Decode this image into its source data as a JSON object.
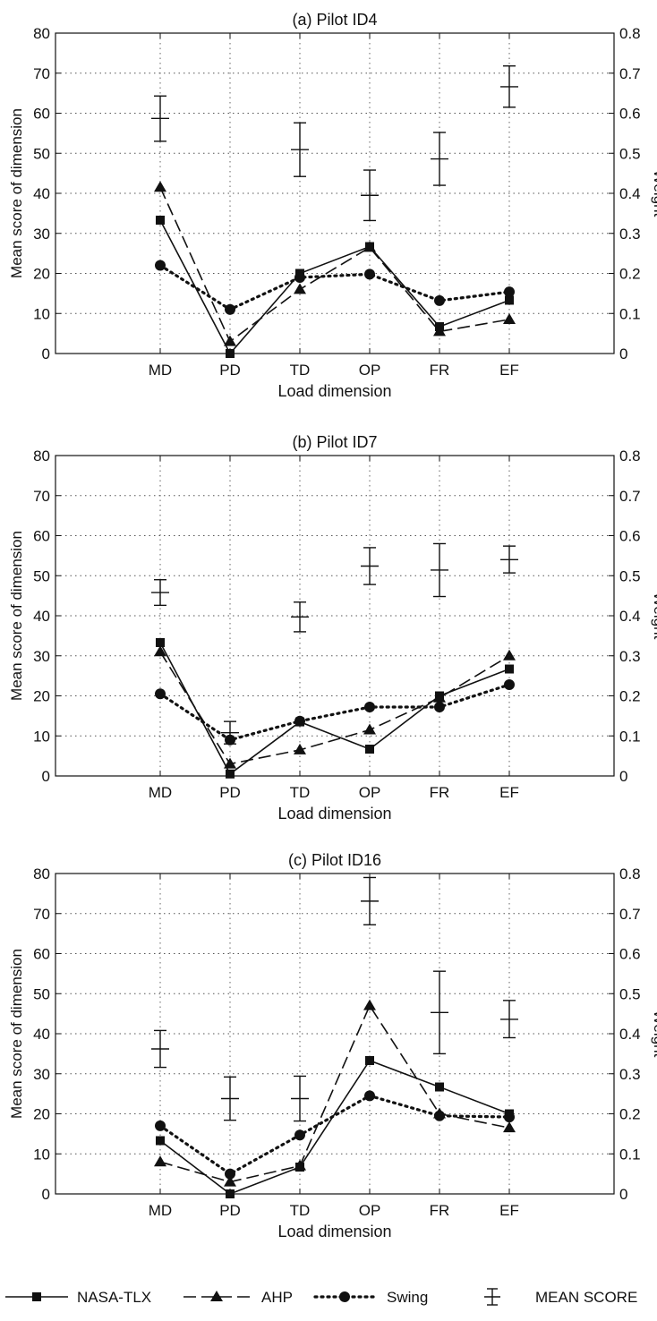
{
  "chart_data": [
    {
      "type": "line",
      "title": "(a) Pilot ID4",
      "xlabel": "Load dimension",
      "ylabel": "Mean score of dimension",
      "y2label": "Weight",
      "categories": [
        "MD",
        "PD",
        "TD",
        "OP",
        "FR",
        "EF"
      ],
      "ylim": [
        0,
        80
      ],
      "y2lim": [
        0,
        0.8
      ],
      "yticks": [
        "0",
        "10",
        "20",
        "30",
        "40",
        "50",
        "60",
        "70",
        "80"
      ],
      "y2ticks": [
        "0",
        "0.1",
        "0.2",
        "0.3",
        "0.4",
        "0.5",
        "0.6",
        "0.7",
        "0.8"
      ],
      "grid": true,
      "series": [
        {
          "name": "NASA-TLX",
          "axis": "right",
          "values": [
            0.333,
            0.0,
            0.2,
            0.267,
            0.067,
            0.133
          ]
        },
        {
          "name": "AHP",
          "axis": "right",
          "values": [
            0.415,
            0.03,
            0.16,
            0.265,
            0.055,
            0.085
          ]
        },
        {
          "name": "Swing",
          "axis": "right",
          "values": [
            0.22,
            0.11,
            0.19,
            0.198,
            0.132,
            0.154
          ]
        }
      ],
      "mean_score": {
        "name": "MEAN SCORE",
        "axis": "left",
        "mean": [
          58.7,
          null,
          50.9,
          39.5,
          48.6,
          66.6
        ],
        "low": [
          53.0,
          null,
          44.2,
          33.2,
          42.0,
          61.5
        ],
        "high": [
          64.3,
          null,
          57.6,
          45.8,
          55.2,
          71.8
        ]
      }
    },
    {
      "type": "line",
      "title": "(b) Pilot ID7",
      "xlabel": "Load dimension",
      "ylabel": "Mean score of dimension",
      "y2label": "Weight",
      "categories": [
        "MD",
        "PD",
        "TD",
        "OP",
        "FR",
        "EF"
      ],
      "ylim": [
        0,
        80
      ],
      "y2lim": [
        0,
        0.8
      ],
      "yticks": [
        "0",
        "10",
        "20",
        "30",
        "40",
        "50",
        "60",
        "70",
        "80"
      ],
      "y2ticks": [
        "0",
        "0.1",
        "0.2",
        "0.3",
        "0.4",
        "0.5",
        "0.6",
        "0.7",
        "0.8"
      ],
      "grid": true,
      "series": [
        {
          "name": "NASA-TLX",
          "axis": "right",
          "values": [
            0.333,
            0.005,
            0.135,
            0.067,
            0.2,
            0.267
          ]
        },
        {
          "name": "AHP",
          "axis": "right",
          "values": [
            0.31,
            0.03,
            0.065,
            0.115,
            0.195,
            0.3
          ]
        },
        {
          "name": "Swing",
          "axis": "right",
          "values": [
            0.205,
            0.09,
            0.137,
            0.172,
            0.172,
            0.228
          ]
        }
      ],
      "mean_score": {
        "name": "MEAN SCORE",
        "axis": "left",
        "mean": [
          45.8,
          10.8,
          39.7,
          52.4,
          51.4,
          54.0
        ],
        "low": [
          42.6,
          8.0,
          36.0,
          47.8,
          44.8,
          50.7
        ],
        "high": [
          49.0,
          13.6,
          43.4,
          57.0,
          58.0,
          57.4
        ]
      }
    },
    {
      "type": "line",
      "title": "(c) Pilot ID16",
      "xlabel": "Load dimension",
      "ylabel": "Mean score of dimension",
      "y2label": "Weight",
      "categories": [
        "MD",
        "PD",
        "TD",
        "OP",
        "FR",
        "EF"
      ],
      "ylim": [
        0,
        80
      ],
      "y2lim": [
        0,
        0.8
      ],
      "yticks": [
        "0",
        "10",
        "20",
        "30",
        "40",
        "50",
        "60",
        "70",
        "80"
      ],
      "y2ticks": [
        "0",
        "0.1",
        "0.2",
        "0.3",
        "0.4",
        "0.5",
        "0.6",
        "0.7",
        "0.8"
      ],
      "grid": true,
      "series": [
        {
          "name": "NASA-TLX",
          "axis": "right",
          "values": [
            0.133,
            0.0,
            0.067,
            0.333,
            0.267,
            0.2
          ]
        },
        {
          "name": "AHP",
          "axis": "right",
          "values": [
            0.08,
            0.03,
            0.07,
            0.47,
            0.2,
            0.165
          ]
        },
        {
          "name": "Swing",
          "axis": "right",
          "values": [
            0.17,
            0.05,
            0.147,
            0.245,
            0.195,
            0.192
          ]
        }
      ],
      "mean_score": {
        "name": "MEAN SCORE",
        "axis": "left",
        "mean": [
          36.2,
          23.8,
          23.8,
          73.1,
          45.3,
          43.6
        ],
        "low": [
          31.6,
          18.4,
          18.2,
          67.2,
          35.0,
          39.0
        ],
        "high": [
          40.8,
          29.2,
          29.4,
          79.0,
          55.6,
          48.3
        ]
      }
    }
  ],
  "legend": {
    "placement": "bottom",
    "items": [
      {
        "label": "NASA-TLX",
        "marker": "square",
        "line": "solid"
      },
      {
        "label": "AHP",
        "marker": "triangle",
        "line": "dashed"
      },
      {
        "label": "Swing",
        "marker": "circle",
        "line": "dotted"
      },
      {
        "label": "MEAN SCORE",
        "marker": "errorbar",
        "line": "none"
      }
    ]
  }
}
